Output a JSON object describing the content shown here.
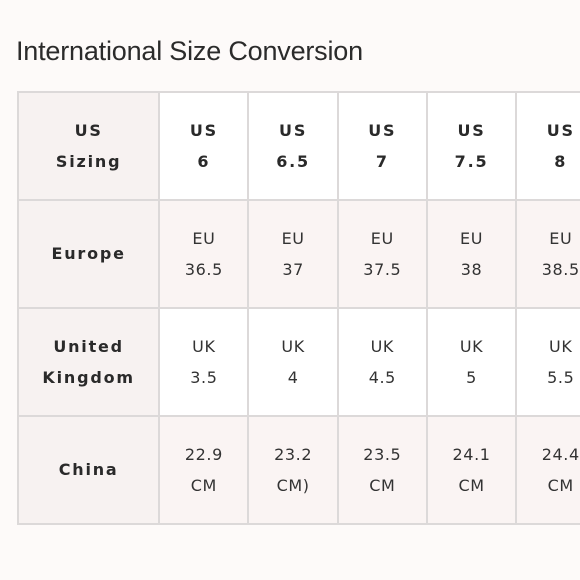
{
  "title": "International Size Conversion",
  "table": {
    "header": {
      "label_line1": "US",
      "label_line2": "Sizing",
      "columns": [
        {
          "line1": "US",
          "line2": "6"
        },
        {
          "line1": "US",
          "line2": "6.5"
        },
        {
          "line1": "US",
          "line2": "7"
        },
        {
          "line1": "US",
          "line2": "7.5"
        },
        {
          "line1": "US",
          "line2": "8"
        }
      ]
    },
    "rows": [
      {
        "label_line1": "Europe",
        "label_line2": "",
        "cells": [
          {
            "line1": "EU",
            "line2": "36.5"
          },
          {
            "line1": "EU",
            "line2": "37"
          },
          {
            "line1": "EU",
            "line2": "37.5"
          },
          {
            "line1": "EU",
            "line2": "38"
          },
          {
            "line1": "EU",
            "line2": "38.5"
          }
        ]
      },
      {
        "label_line1": "United",
        "label_line2": "Kingdom",
        "cells": [
          {
            "line1": "UK",
            "line2": "3.5"
          },
          {
            "line1": "UK",
            "line2": "4"
          },
          {
            "line1": "UK",
            "line2": "4.5"
          },
          {
            "line1": "UK",
            "line2": "5"
          },
          {
            "line1": "UK",
            "line2": "5.5"
          }
        ]
      },
      {
        "label_line1": "China",
        "label_line2": "",
        "cells": [
          {
            "line1": "22.9",
            "line2": "CM"
          },
          {
            "line1": "23.2",
            "line2": "CM)"
          },
          {
            "line1": "23.5",
            "line2": "CM"
          },
          {
            "line1": "24.1",
            "line2": "CM"
          },
          {
            "line1": "24.4",
            "line2": "CM"
          }
        ]
      }
    ]
  }
}
